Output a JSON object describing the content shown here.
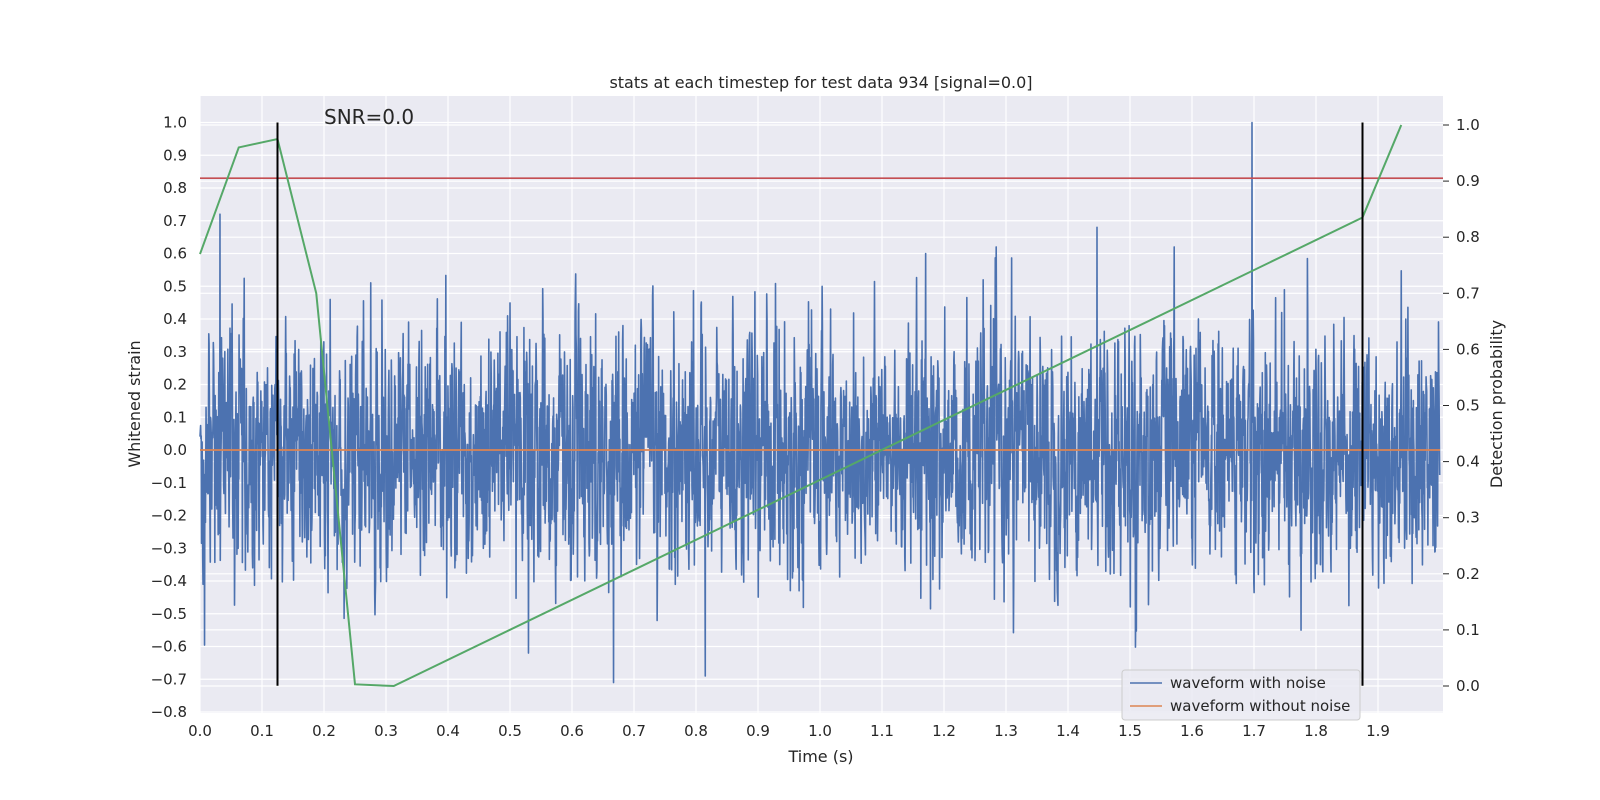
{
  "chart_data": {
    "type": "line",
    "title": "stats at each timestep for test data 934 [signal=0.0]",
    "xlabel": "Time (s)",
    "ylabel": "Whitened strain",
    "y2label": "Detection probability",
    "xlim": [
      0.0,
      2.0
    ],
    "ylim": [
      -0.8,
      1.08
    ],
    "y2lim": [
      -0.05,
      1.03
    ],
    "xticks": [
      "0.0",
      "0.1",
      "0.2",
      "0.3",
      "0.4",
      "0.5",
      "0.6",
      "0.7",
      "0.8",
      "0.9",
      "1.0",
      "1.1",
      "1.2",
      "1.3",
      "1.4",
      "1.5",
      "1.6",
      "1.7",
      "1.8",
      "1.9"
    ],
    "yticks": [
      "1.0",
      "0.9",
      "0.8",
      "0.7",
      "0.6",
      "0.5",
      "0.4",
      "0.3",
      "0.2",
      "0.1",
      "0.0",
      "−0.1",
      "−0.2",
      "−0.3",
      "−0.4",
      "−0.5",
      "−0.6",
      "−0.7",
      "−0.8"
    ],
    "y2ticks": [
      "1.0",
      "0.9",
      "0.8",
      "0.7",
      "0.6",
      "0.5",
      "0.4",
      "0.3",
      "0.2",
      "0.1",
      "0.0"
    ],
    "grid": true,
    "legend_position": "lower-right",
    "annotation": "SNR=0.0",
    "series": [
      {
        "name": "waveform with noise",
        "color": "#4c72b0",
        "style": "noise",
        "sample_rate": 2048,
        "approx_std": 0.17,
        "notable_points": [
          [
            0.032,
            0.72
          ],
          [
            0.667,
            -0.71
          ],
          [
            0.815,
            -0.69
          ],
          [
            1.447,
            0.68
          ],
          [
            1.697,
            1.0
          ],
          [
            1.776,
            -0.55
          ]
        ]
      },
      {
        "name": "waveform without noise",
        "color": "#dd8452",
        "x": [
          0.0,
          2.0
        ],
        "y": [
          0.0,
          0.0
        ]
      },
      {
        "axis": "right",
        "color": "#55a868",
        "x": [
          0.0,
          0.0625,
          0.125,
          0.1875,
          0.25,
          0.3125,
          1.875,
          1.9375
        ],
        "y": [
          0.77,
          0.96,
          0.975,
          0.7,
          0.003,
          0.0,
          0.835,
          1.0
        ]
      }
    ],
    "threshold": {
      "axis": "left",
      "value": 0.83,
      "color": "#c44e52"
    },
    "vlines": [
      {
        "x": 0.125,
        "ymin": -0.72,
        "ymax": 1.0,
        "color": "#000000"
      },
      {
        "x": 1.875,
        "ymin": -0.72,
        "ymax": 1.0,
        "color": "#000000"
      }
    ]
  }
}
